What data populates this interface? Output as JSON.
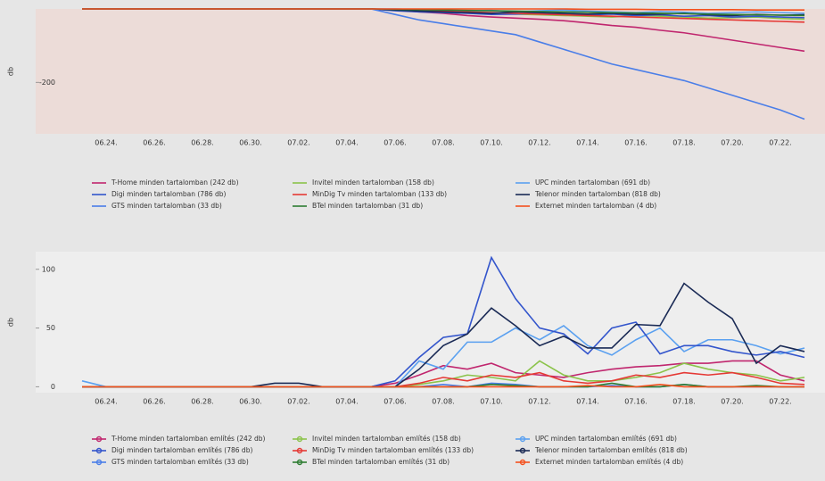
{
  "chart_data": [
    {
      "type": "line",
      "ylabel": "db",
      "categories": [
        null,
        "06.24.",
        null,
        "06.26.",
        null,
        "06.28.",
        null,
        "06.30.",
        null,
        "07.02.",
        null,
        "07.04.",
        null,
        "07.06.",
        null,
        "07.08.",
        null,
        "07.10.",
        null,
        "07.12.",
        null,
        "07.14.",
        null,
        "07.16.",
        null,
        "07.18.",
        null,
        "07.20.",
        null,
        "07.22.",
        null
      ],
      "ylim": [
        -340,
        0
      ],
      "yticks": [
        -200
      ],
      "series": [
        {
          "name": "T-Home minden tartalomban (242 db)",
          "color": "#c0266e",
          "values": [
            0,
            0,
            0,
            0,
            0,
            0,
            0,
            0,
            0,
            0,
            0,
            0,
            0,
            -3,
            -8,
            -12,
            -18,
            -22,
            -25,
            -28,
            -32,
            -38,
            -45,
            -50,
            -58,
            -65,
            -75,
            -85,
            -95,
            -105,
            -115
          ]
        },
        {
          "name": "Invitel minden tartalomban (158 db)",
          "color": "#8bc34a",
          "values": [
            0,
            0,
            0,
            0,
            0,
            0,
            0,
            0,
            0,
            0,
            0,
            0,
            0,
            -2,
            -5,
            -8,
            -10,
            -12,
            -14,
            -16,
            -18,
            -20,
            -22,
            -18,
            -20,
            -22,
            -25,
            -24,
            -22,
            -26,
            -28
          ]
        },
        {
          "name": "UPC minden tartalomban (691 db)",
          "color": "#5aa0f0",
          "values": [
            0,
            0,
            0,
            0,
            0,
            0,
            0,
            0,
            0,
            0,
            0,
            0,
            0,
            0,
            -2,
            -3,
            -5,
            -4,
            -8,
            -5,
            -3,
            -6,
            -8,
            -10,
            -7,
            -9,
            -12,
            -10,
            -8,
            -10,
            -12
          ]
        },
        {
          "name": "Digi minden tartalomban (786 db)",
          "color": "#3355cc",
          "values": [
            0,
            0,
            0,
            0,
            0,
            0,
            0,
            0,
            0,
            0,
            0,
            0,
            0,
            -5,
            -8,
            -10,
            -12,
            -15,
            -14,
            -12,
            -15,
            -16,
            -14,
            -18,
            -16,
            -20,
            -18,
            -22,
            -20,
            -22,
            -24
          ]
        },
        {
          "name": "MinDig Tv minden tartalomban (133 db)",
          "color": "#e53935",
          "values": [
            0,
            0,
            0,
            0,
            0,
            0,
            0,
            0,
            0,
            0,
            0,
            0,
            0,
            -2,
            -4,
            -6,
            -8,
            -10,
            -12,
            -14,
            -16,
            -18,
            -20,
            -22,
            -24,
            -26,
            -28,
            -30,
            -32,
            -34,
            -36
          ]
        },
        {
          "name": "Telenor minden tartalomban (818 db)",
          "color": "#1a2a55",
          "values": [
            0,
            0,
            0,
            0,
            0,
            0,
            0,
            0,
            0,
            0,
            0,
            0,
            0,
            -3,
            -6,
            -8,
            -10,
            -12,
            -8,
            -10,
            -12,
            -14,
            -12,
            -15,
            -14,
            -12,
            -16,
            -18,
            -15,
            -17,
            -16
          ]
        },
        {
          "name": "GTS minden tartalomban (33 db)",
          "color": "#4a7ee8",
          "values": [
            0,
            0,
            0,
            0,
            0,
            0,
            0,
            0,
            0,
            0,
            0,
            0,
            0,
            -15,
            -30,
            -40,
            -50,
            -60,
            -70,
            -90,
            -110,
            -130,
            -150,
            -165,
            -180,
            -195,
            -215,
            -235,
            -255,
            -275,
            -300
          ]
        },
        {
          "name": "BTel minden tartalomban (31 db)",
          "color": "#2e7d32",
          "values": [
            0,
            0,
            0,
            0,
            0,
            0,
            0,
            0,
            0,
            0,
            0,
            0,
            0,
            -1,
            -2,
            -3,
            -4,
            -5,
            -6,
            -7,
            -8,
            -9,
            -10,
            -11,
            -12,
            -13,
            -14,
            -15,
            -16,
            -17,
            -18
          ]
        },
        {
          "name": "Externet minden tartalomban (4 db)",
          "color": "#f4511e",
          "values": [
            0,
            0,
            0,
            0,
            0,
            0,
            0,
            0,
            0,
            0,
            0,
            0,
            0,
            0,
            0,
            0,
            0,
            0,
            0,
            0,
            0,
            -1,
            -1,
            -1,
            -2,
            -2,
            -2,
            -2,
            -3,
            -3,
            -3
          ]
        }
      ]
    },
    {
      "type": "line",
      "ylabel": "db",
      "categories": [
        null,
        "06.24.",
        null,
        "06.26.",
        null,
        "06.28.",
        null,
        "06.30.",
        null,
        "07.02.",
        null,
        "07.04.",
        null,
        "07.06.",
        null,
        "07.08.",
        null,
        "07.10.",
        null,
        "07.12.",
        null,
        "07.14.",
        null,
        "07.16.",
        null,
        "07.18.",
        null,
        "07.20.",
        null,
        "07.22.",
        null
      ],
      "ylim": [
        -5,
        115
      ],
      "yticks": [
        0,
        50,
        100
      ],
      "series": [
        {
          "name": "T-Home minden tartalomban említés (242 db)",
          "color": "#c0266e",
          "values": [
            0,
            0,
            0,
            0,
            0,
            0,
            0,
            0,
            0,
            0,
            0,
            0,
            0,
            3,
            10,
            18,
            15,
            20,
            12,
            10,
            8,
            12,
            15,
            17,
            18,
            20,
            20,
            22,
            22,
            10,
            5
          ]
        },
        {
          "name": "Invitel minden tartalomban említés (158 db)",
          "color": "#8bc34a",
          "values": [
            0,
            0,
            0,
            0,
            0,
            0,
            0,
            0,
            0,
            0,
            0,
            0,
            0,
            0,
            2,
            5,
            10,
            8,
            5,
            22,
            10,
            5,
            5,
            8,
            12,
            20,
            15,
            12,
            10,
            5,
            8
          ]
        },
        {
          "name": "UPC minden tartalomban említés (691 db)",
          "color": "#5aa0f0",
          "values": [
            5,
            0,
            0,
            0,
            0,
            0,
            0,
            0,
            0,
            0,
            0,
            0,
            0,
            0,
            22,
            15,
            38,
            38,
            50,
            40,
            52,
            35,
            27,
            40,
            50,
            30,
            40,
            40,
            35,
            28,
            33
          ]
        },
        {
          "name": "Digi minden tartalomban említés (786 db)",
          "color": "#3355cc",
          "values": [
            0,
            0,
            0,
            0,
            0,
            0,
            0,
            0,
            0,
            0,
            0,
            0,
            0,
            5,
            25,
            42,
            45,
            110,
            75,
            50,
            45,
            28,
            50,
            55,
            28,
            35,
            35,
            30,
            27,
            30,
            25
          ]
        },
        {
          "name": "MinDig Tv minden tartalomban említés (133 db)",
          "color": "#e53935",
          "values": [
            0,
            0,
            0,
            0,
            0,
            0,
            0,
            0,
            0,
            0,
            0,
            0,
            0,
            0,
            3,
            8,
            5,
            10,
            8,
            12,
            5,
            3,
            5,
            10,
            8,
            12,
            10,
            12,
            8,
            3,
            2
          ]
        },
        {
          "name": "Telenor minden tartalomban említés (818 db)",
          "color": "#1a2a55",
          "values": [
            0,
            0,
            0,
            0,
            0,
            0,
            0,
            0,
            3,
            3,
            0,
            0,
            0,
            0,
            15,
            35,
            45,
            67,
            52,
            35,
            43,
            33,
            33,
            53,
            52,
            88,
            72,
            58,
            20,
            35,
            30
          ]
        },
        {
          "name": "GTS minden tartalomban említés (33 db)",
          "color": "#4a7ee8",
          "values": [
            0,
            0,
            0,
            0,
            0,
            0,
            0,
            0,
            0,
            0,
            0,
            0,
            0,
            0,
            0,
            2,
            0,
            3,
            2,
            0,
            0,
            0,
            1,
            0,
            0,
            2,
            0,
            0,
            0,
            0,
            0
          ]
        },
        {
          "name": "BTel minden tartalomban említés (31 db)",
          "color": "#2e7d32",
          "values": [
            0,
            0,
            0,
            0,
            0,
            0,
            0,
            0,
            0,
            0,
            0,
            0,
            0,
            0,
            0,
            0,
            0,
            2,
            1,
            0,
            0,
            0,
            3,
            0,
            0,
            2,
            0,
            0,
            1,
            0,
            0
          ]
        },
        {
          "name": "Externet minden tartalomban említés (4 db)",
          "color": "#f4511e",
          "values": [
            0,
            0,
            0,
            0,
            0,
            0,
            0,
            0,
            0,
            0,
            0,
            0,
            0,
            0,
            0,
            0,
            0,
            0,
            0,
            0,
            0,
            1,
            0,
            0,
            2,
            0,
            0,
            0,
            0,
            0,
            0
          ]
        }
      ]
    }
  ]
}
